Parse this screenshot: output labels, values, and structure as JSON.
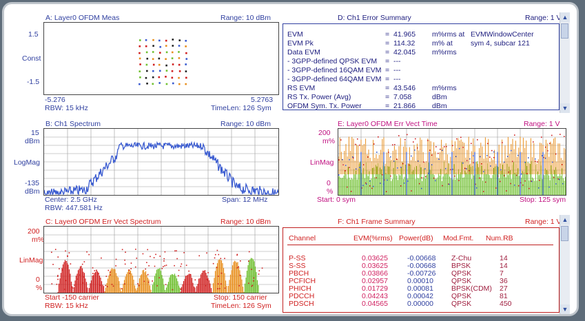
{
  "colors": {
    "trace_blue": "#3a5bd0",
    "trace_orange": "#e89020",
    "trace_green": "#70c030",
    "trace_red": "#d02020"
  },
  "pane_a": {
    "title": "A: Layer0 OFDM Meas",
    "range": "Range: 10 dBm",
    "y_top": "1.5",
    "y_mid": "Const",
    "y_bot": "-1.5",
    "x_left": "-5.276",
    "x_right": "5.2763",
    "rbw": "RBW: 15 kHz",
    "timelen": "TimeLen: 126  Sym"
  },
  "pane_b": {
    "title": "B: Ch1 Spectrum",
    "range": "Range: 10 dBm",
    "y_top": "15",
    "y_top_unit": "dBm",
    "y_mid": "LogMag",
    "y_bot": "-135",
    "y_bot_unit": "dBm",
    "center": "Center: 2.5 GHz",
    "span": "Span: 12 MHz",
    "rbw": "RBW: 447.581  Hz"
  },
  "pane_c": {
    "title": "C: Layer0 OFDM Err Vect Spectrum",
    "range": "Range: 10 dBm",
    "y_top": "200",
    "y_top_unit": "m%",
    "y_mid": "LinMag",
    "y_bot": "0",
    "y_bot_unit": "%",
    "start": "Start -150  carrier",
    "stop": "Stop: 150  carrier",
    "rbw": "RBW: 15 kHz",
    "timelen": "TimeLen: 126  Sym"
  },
  "pane_d": {
    "title": "D: Ch1 Error Summary",
    "range": "Range: 1  V",
    "rows": [
      {
        "label": "EVM",
        "eq": "=",
        "value": "41.965",
        "unit": "m%rms at",
        "extra": "EVMWindowCenter"
      },
      {
        "label": "EVM Pk",
        "eq": "=",
        "value": "114.32",
        "unit": "m% at",
        "extra": "sym 4,   subcar  121"
      },
      {
        "label": "Data EVM",
        "eq": "=",
        "value": "42.045",
        "unit": "m%rms",
        "extra": ""
      },
      {
        "label": " - 3GPP-defined QPSK EVM",
        "eq": "=",
        "value": "---",
        "unit": "",
        "extra": ""
      },
      {
        "label": " - 3GPP-defined 16QAM EVM",
        "eq": "=",
        "value": "---",
        "unit": "",
        "extra": ""
      },
      {
        "label": " - 3GPP-defined 64QAM EVM",
        "eq": "=",
        "value": "---",
        "unit": "",
        "extra": ""
      },
      {
        "label": "RS EVM",
        "eq": "=",
        "value": "43.546",
        "unit": "m%rms",
        "extra": ""
      },
      {
        "label": "RS Tx. Power (Avg)",
        "eq": "=",
        "value": "7.058",
        "unit": "dBm",
        "extra": ""
      },
      {
        "label": "OFDM Sym. Tx. Power",
        "eq": "=",
        "value": "21.866",
        "unit": "dBm",
        "extra": ""
      }
    ]
  },
  "pane_e": {
    "title": "E: Layer0 OFDM Err Vect Time",
    "range": "Range: 1  V",
    "y_top": "200",
    "y_top_unit": "m%",
    "y_mid": "LinMag",
    "y_bot": "0",
    "y_bot_unit": "%",
    "start": "Start: 0  sym",
    "stop": "Stop: 125  sym"
  },
  "pane_f": {
    "title": "F: Ch1 Frame Summary",
    "range": "Range: 1  V",
    "headers": [
      "Channel",
      "EVM(%rms)",
      "Power(dB)",
      "Mod.Fmt.",
      "Num.RB"
    ],
    "rows": [
      {
        "ch": "P-SS",
        "evm": "0.03625",
        "pwr": "-0.00668",
        "mod": "Z-Chu",
        "rb": "14"
      },
      {
        "ch": "S-SS",
        "evm": "0.03625",
        "pwr": "-0.00668",
        "mod": "BPSK",
        "rb": "14"
      },
      {
        "ch": "PBCH",
        "evm": "0.03866",
        "pwr": "-0.00726",
        "mod": "QPSK",
        "rb": "7"
      },
      {
        "ch": "PCFICH",
        "evm": "0.02957",
        "pwr": "0.00010",
        "mod": "QPSK",
        "rb": "36"
      },
      {
        "ch": "PHICH",
        "evm": "0.01729",
        "pwr": "0.00081",
        "mod": "BPSK(CDM)",
        "rb": "27"
      },
      {
        "ch": "PDCCH",
        "evm": "0.04243",
        "pwr": "0.00042",
        "mod": "QPSK",
        "rb": "81"
      },
      {
        "ch": "PDSCH",
        "evm": "0.04565",
        "pwr": "0.00000",
        "mod": "QPSK",
        "rb": "450"
      }
    ]
  }
}
